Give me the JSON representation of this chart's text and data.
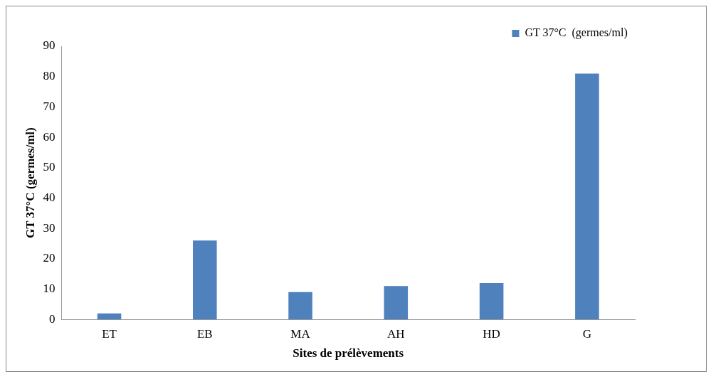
{
  "chart_data": {
    "type": "bar",
    "xlabel": "Sites de prélèvements",
    "ylabel": "GT 37°C (germes/ml)",
    "categories": [
      "ET",
      "EB",
      "MA",
      "AH",
      "HD",
      "G"
    ],
    "series": [
      {
        "name": "GT 37°C  (germes/ml)",
        "color": "#4f81bd",
        "values": [
          2,
          26,
          9,
          11,
          12,
          81
        ]
      }
    ],
    "ylim": [
      0,
      90
    ],
    "yticks": [
      0,
      10,
      20,
      30,
      40,
      50,
      60,
      70,
      80,
      90
    ],
    "grid": false,
    "legend": "top right"
  }
}
